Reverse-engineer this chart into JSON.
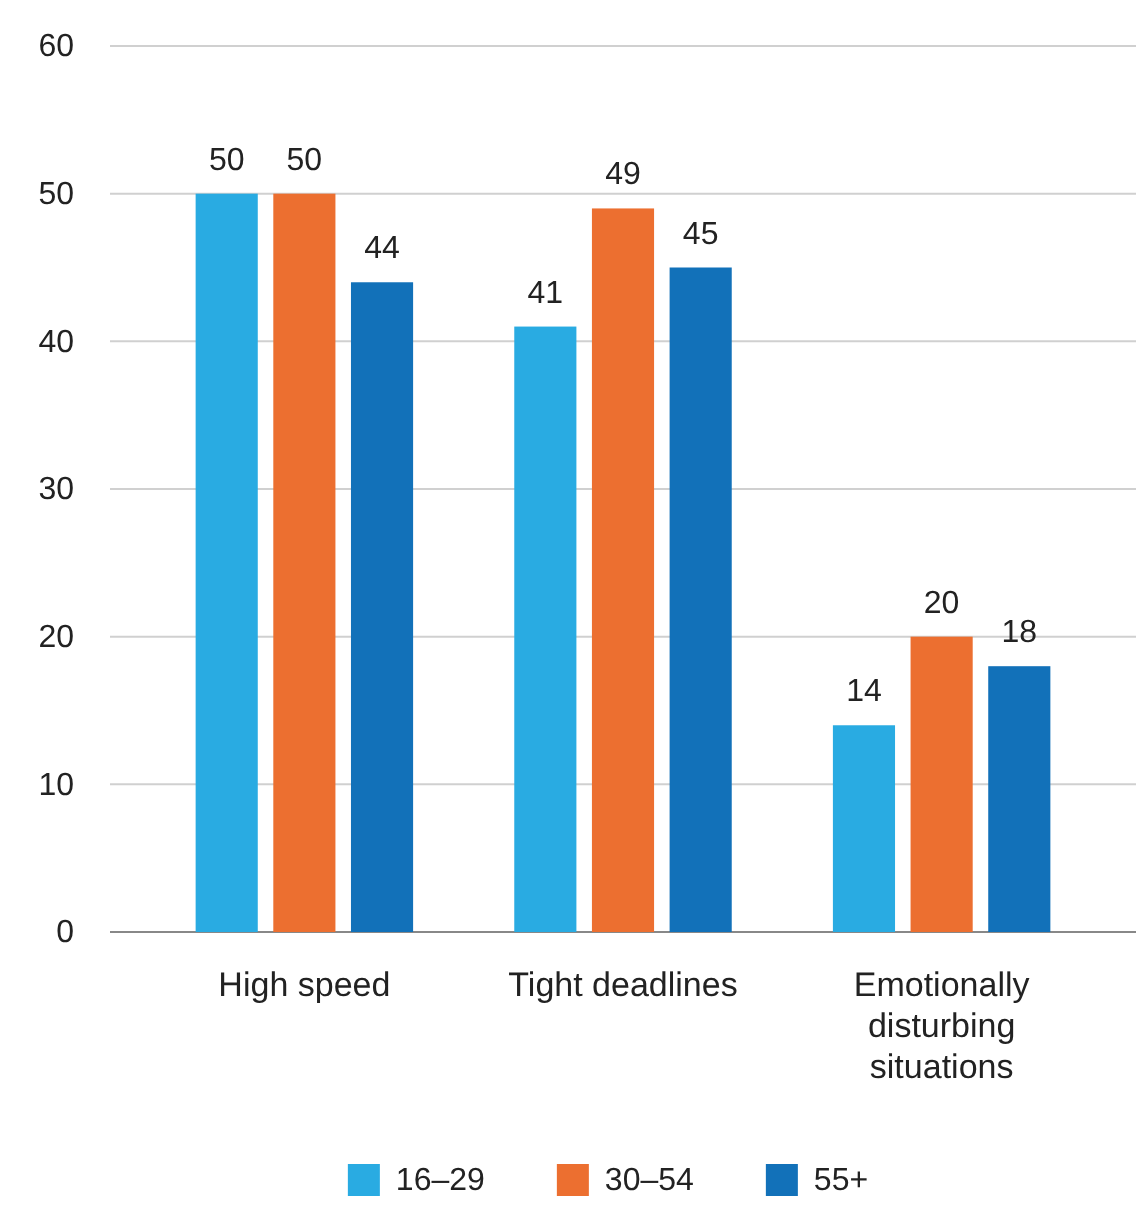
{
  "chart_data": {
    "type": "bar",
    "categories": [
      "High speed",
      "Tight deadlines",
      "Emotionally disturbing situations"
    ],
    "series": [
      {
        "name": "16–29",
        "color": "#29abe2",
        "values": [
          50,
          41,
          14
        ]
      },
      {
        "name": "30–54",
        "color": "#ec6f30",
        "values": [
          50,
          49,
          20
        ]
      },
      {
        "name": "55+",
        "color": "#1271b9",
        "values": [
          44,
          45,
          18
        ]
      }
    ],
    "ylim": [
      0,
      60
    ],
    "yticks": [
      0,
      10,
      20,
      30,
      40,
      50,
      60
    ],
    "grid": "y",
    "legend": "bottom",
    "data_labels": true
  }
}
